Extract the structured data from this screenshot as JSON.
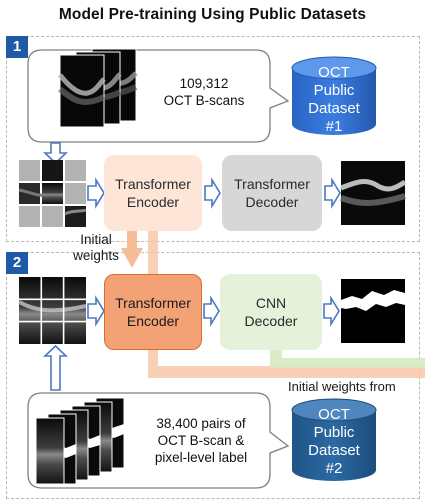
{
  "title": "Model Pre-training Using Public Datasets",
  "stage1": {
    "number": "1",
    "caption_line1": "109,312",
    "caption_line2": "OCT B-scans",
    "dataset_line1": "OCT",
    "dataset_line2": "Public",
    "dataset_line3": "Dataset",
    "dataset_line4": "#1",
    "encoder_line1": "Transformer",
    "encoder_line2": "Encoder",
    "decoder_line1": "Transformer",
    "decoder_line2": "Decoder"
  },
  "transfer_label_line1": "Initial",
  "transfer_label_line2": "weights",
  "stage2": {
    "number": "2",
    "encoder_line1": "Transformer",
    "encoder_line2": "Encoder",
    "decoder_line1": "CNN",
    "decoder_line2": "Decoder",
    "output_label": "Initial weights from",
    "caption_line1": "38,400 pairs of",
    "caption_line2": "OCT B-scan  &",
    "caption_line3": "pixel-level label",
    "dataset_line1": "OCT",
    "dataset_line2": "Public",
    "dataset_line3": "Dataset",
    "dataset_line4": "#2"
  },
  "colors": {
    "badge": "#1f5aa6",
    "dataset1": "#2f6fd0",
    "dataset2": "#245f94",
    "encoder_pretrain": "#fde6d8",
    "encoder_finetune": "#f3a275",
    "transformer_decoder": "#d7d7d7",
    "cnn_decoder": "#e6f1d9",
    "arrow_outline": "#4a78c2",
    "weight_arrow": "#f6bd97"
  }
}
